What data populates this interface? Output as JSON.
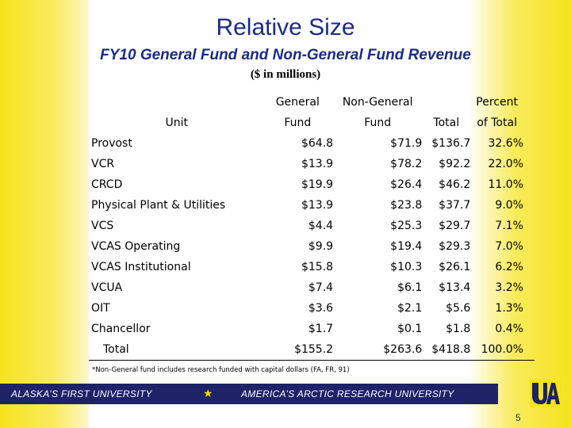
{
  "slide": {
    "title": "Relative Size",
    "subtitle": "FY10 General Fund and Non-General Fund Revenue",
    "units": "($ in millions)",
    "footnote": "*Non-General fund includes research funded with capital dollars (FA, FR, 91)",
    "page_number": "5"
  },
  "table": {
    "headers": {
      "unit": [
        "",
        "Unit"
      ],
      "general": [
        "General",
        "Fund"
      ],
      "nongeneral": [
        "Non-General",
        "Fund"
      ],
      "total": [
        "",
        "Total"
      ],
      "percent": [
        "Percent",
        "of Total"
      ]
    },
    "rows": [
      {
        "unit": "Provost",
        "general": "$64.8",
        "nongeneral": "$71.9",
        "total": "$136.7",
        "percent": "32.6%"
      },
      {
        "unit": "VCR",
        "general": "$13.9",
        "nongeneral": "$78.2",
        "total": "$92.2",
        "percent": "22.0%"
      },
      {
        "unit": "CRCD",
        "general": "$19.9",
        "nongeneral": "$26.4",
        "total": "$46.2",
        "percent": "11.0%"
      },
      {
        "unit": "Physical Plant & Utilities",
        "general": "$13.9",
        "nongeneral": "$23.8",
        "total": "$37.7",
        "percent": "9.0%"
      },
      {
        "unit": "VCS",
        "general": "$4.4",
        "nongeneral": "$25.3",
        "total": "$29.7",
        "percent": "7.1%"
      },
      {
        "unit": "VCAS Operating",
        "general": "$9.9",
        "nongeneral": "$19.4",
        "total": "$29.3",
        "percent": "7.0%"
      },
      {
        "unit": "VCAS Institutional",
        "general": "$15.8",
        "nongeneral": "$10.3",
        "total": "$26.1",
        "percent": "6.2%"
      },
      {
        "unit": "VCUA",
        "general": "$7.4",
        "nongeneral": "$6.1",
        "total": "$13.4",
        "percent": "3.2%"
      },
      {
        "unit": "OIT",
        "general": "$3.6",
        "nongeneral": "$2.1",
        "total": "$5.6",
        "percent": "1.3%"
      },
      {
        "unit": "Chancellor",
        "general": "$1.7",
        "nongeneral": "$0.1",
        "total": "$1.8",
        "percent": "0.4%"
      }
    ],
    "total": {
      "unit": "Total",
      "general": "$155.2",
      "nongeneral": "$263.6",
      "total": "$418.8",
      "percent": "100.0%"
    }
  },
  "footer": {
    "left_text": "ALASKA’S FIRST UNIVERSITY",
    "right_text": "AMERICA’S ARCTIC RESEARCH UNIVERSITY",
    "star_icon": "star-icon",
    "logo": "UAF",
    "bar_color": "#1d2366",
    "accent_color": "#f6e31d"
  }
}
